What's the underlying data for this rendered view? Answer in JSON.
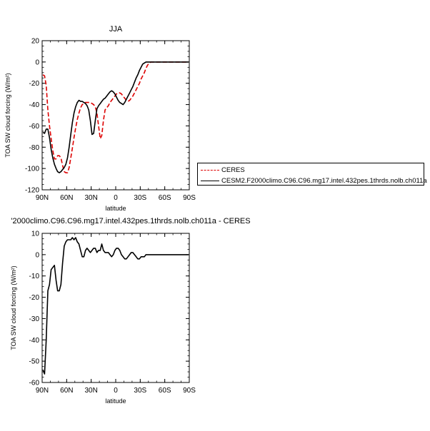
{
  "chart_data": [
    {
      "type": "line",
      "title": "JJA",
      "xlabel": "latitude",
      "ylabel": "TOA SW cloud forcing (W/m²)",
      "ylim": [
        -120,
        20
      ],
      "xlim": [
        90,
        -90
      ],
      "xticks": [
        {
          "value": 90,
          "label": "90N"
        },
        {
          "value": 60,
          "label": "60N"
        },
        {
          "value": 30,
          "label": "30N"
        },
        {
          "value": 0,
          "label": "0"
        },
        {
          "value": -30,
          "label": "30S"
        },
        {
          "value": -60,
          "label": "60S"
        },
        {
          "value": -90,
          "label": "90S"
        }
      ],
      "yticks": [
        20,
        0,
        -20,
        -40,
        -60,
        -80,
        -100,
        -120
      ],
      "legend_position": "right",
      "series": [
        {
          "name": "CERES",
          "color": "#dd0000",
          "dash": true,
          "x": [
            89,
            87,
            85,
            83,
            81,
            79,
            77,
            75,
            73,
            71,
            69,
            67,
            65,
            63,
            61,
            59,
            57,
            55,
            53,
            51,
            49,
            47,
            45,
            43,
            41,
            39,
            37,
            35,
            33,
            31,
            29,
            27,
            25,
            23,
            21,
            19,
            17,
            15,
            13,
            11,
            9,
            7,
            5,
            3,
            1,
            -1,
            -3,
            -5,
            -7,
            -9,
            -11,
            -13,
            -15,
            -17,
            -19,
            -21,
            -23,
            -25,
            -27,
            -29,
            -31,
            -33,
            -35,
            -37,
            -39,
            -41,
            -43,
            -45,
            -47,
            -49,
            -51,
            -53,
            -55,
            -57,
            -59,
            -61,
            -63,
            -65,
            -67,
            -69,
            -71,
            -73,
            -75,
            -77,
            -79,
            -81,
            -83,
            -85,
            -87,
            -89
          ],
          "y": [
            -12,
            -13,
            -22,
            -45,
            -60,
            -72,
            -83,
            -91,
            -91,
            -88,
            -88,
            -90,
            -97,
            -103,
            -104,
            -104,
            -99,
            -90,
            -81,
            -71,
            -62,
            -54,
            -48,
            -43,
            -40,
            -39,
            -38,
            -38,
            -38,
            -38,
            -39,
            -40,
            -42,
            -48,
            -60,
            -72,
            -69,
            -55,
            -45,
            -43,
            -41,
            -38,
            -36,
            -34,
            -32,
            -30,
            -29,
            -29,
            -30,
            -32,
            -34,
            -36,
            -37,
            -36,
            -34,
            -32,
            -29,
            -26,
            -23,
            -20,
            -16,
            -13,
            -10,
            -6,
            -3,
            -1,
            0,
            0,
            0,
            0,
            0,
            0,
            0,
            0,
            0,
            0,
            0,
            0,
            0,
            0,
            0,
            0,
            0,
            0,
            0,
            0,
            0,
            0,
            0,
            0
          ]
        },
        {
          "name": "CESM2.F2000climo.C96.C96.mg17.intel.432pes.1thrds.nolb.ch011a",
          "color": "#000000",
          "dash": false,
          "x": [
            89,
            87,
            85,
            83,
            81,
            79,
            77,
            75,
            73,
            71,
            69,
            67,
            65,
            63,
            61,
            59,
            57,
            55,
            53,
            51,
            49,
            47,
            45,
            43,
            41,
            39,
            37,
            35,
            33,
            31,
            29,
            27,
            25,
            23,
            21,
            19,
            17,
            15,
            13,
            11,
            9,
            7,
            5,
            3,
            1,
            -1,
            -3,
            -5,
            -7,
            -9,
            -11,
            -13,
            -15,
            -17,
            -19,
            -21,
            -23,
            -25,
            -27,
            -29,
            -31,
            -33,
            -35,
            -37,
            -39,
            -41,
            -43,
            -45,
            -47,
            -49,
            -51,
            -53,
            -55,
            -57,
            -59,
            -61,
            -63,
            -65,
            -67,
            -69,
            -71,
            -73,
            -75,
            -77,
            -79,
            -81,
            -83,
            -85,
            -87,
            -89
          ],
          "y": [
            -66,
            -67,
            -63,
            -63,
            -71,
            -82,
            -90,
            -96,
            -100,
            -103,
            -104,
            -103,
            -101,
            -99,
            -96,
            -90,
            -80,
            -68,
            -57,
            -48,
            -42,
            -38,
            -36,
            -37,
            -37,
            -38,
            -39,
            -41,
            -45,
            -55,
            -68,
            -67,
            -55,
            -44,
            -41,
            -39,
            -37,
            -35,
            -34,
            -32,
            -30,
            -28,
            -27,
            -28,
            -30,
            -33,
            -36,
            -38,
            -39,
            -40,
            -38,
            -35,
            -32,
            -29,
            -26,
            -23,
            -19,
            -15,
            -12,
            -8,
            -5,
            -2,
            -1,
            0,
            0,
            0,
            0,
            0,
            0,
            0,
            0,
            0,
            0,
            0,
            0,
            0,
            0,
            0,
            0,
            0,
            0,
            0,
            0,
            0,
            0,
            0,
            0,
            0,
            0,
            0
          ]
        }
      ]
    },
    {
      "type": "line",
      "title": "'2000climo.C96.C96.mg17.intel.432pes.1thrds.nolb.ch011a - CERES",
      "xlabel": "latitude",
      "ylabel": "TOA SW cloud forcing (W/m²)",
      "ylim": [
        -60,
        10
      ],
      "xlim": [
        90,
        -90
      ],
      "xticks": [
        {
          "value": 90,
          "label": "90N"
        },
        {
          "value": 60,
          "label": "60N"
        },
        {
          "value": 30,
          "label": "30N"
        },
        {
          "value": 0,
          "label": "0"
        },
        {
          "value": -30,
          "label": "30S"
        },
        {
          "value": -60,
          "label": "60S"
        },
        {
          "value": -90,
          "label": "90S"
        }
      ],
      "yticks": [
        10,
        0,
        -10,
        -20,
        -30,
        -40,
        -50,
        -60
      ],
      "series": [
        {
          "name": "",
          "color": "#000000",
          "dash": false,
          "x": [
            89,
            87,
            85,
            83,
            81,
            79,
            77,
            75,
            73,
            71,
            69,
            67,
            65,
            63,
            61,
            59,
            57,
            55,
            53,
            51,
            49,
            47,
            45,
            43,
            41,
            39,
            37,
            35,
            33,
            31,
            29,
            27,
            25,
            23,
            21,
            19,
            17,
            15,
            13,
            11,
            9,
            7,
            5,
            3,
            1,
            -1,
            -3,
            -5,
            -7,
            -9,
            -11,
            -13,
            -15,
            -17,
            -19,
            -21,
            -23,
            -25,
            -27,
            -29,
            -31,
            -33,
            -35,
            -37,
            -39,
            -41,
            -43,
            -45,
            -47,
            -49,
            -51,
            -53,
            -55,
            -57,
            -59,
            -61,
            -63,
            -65,
            -67,
            -69,
            -71,
            -73,
            -75,
            -77,
            -79,
            -81,
            -83,
            -85,
            -87,
            -89
          ],
          "y": [
            -54,
            -56,
            -40,
            -17,
            -14,
            -7,
            -6,
            -5,
            -12,
            -17,
            -17,
            -14,
            -4,
            4,
            6,
            7,
            7,
            7,
            8,
            7,
            8,
            6,
            5,
            2,
            -1,
            -1,
            2,
            3,
            2,
            1,
            2,
            3,
            3,
            1,
            2,
            2,
            5,
            2,
            1,
            1,
            1,
            0,
            -1,
            0,
            2,
            3,
            3,
            2,
            0,
            -1,
            -2,
            -2,
            -1,
            0,
            1,
            1,
            0,
            -1,
            -2,
            -2,
            -1,
            -1,
            -1,
            0,
            0,
            0,
            0,
            0,
            0,
            0,
            0,
            0,
            0,
            0,
            0,
            0,
            0,
            0,
            0,
            0,
            0,
            0,
            0,
            0,
            0,
            0,
            0,
            0,
            0,
            0
          ]
        }
      ]
    }
  ]
}
